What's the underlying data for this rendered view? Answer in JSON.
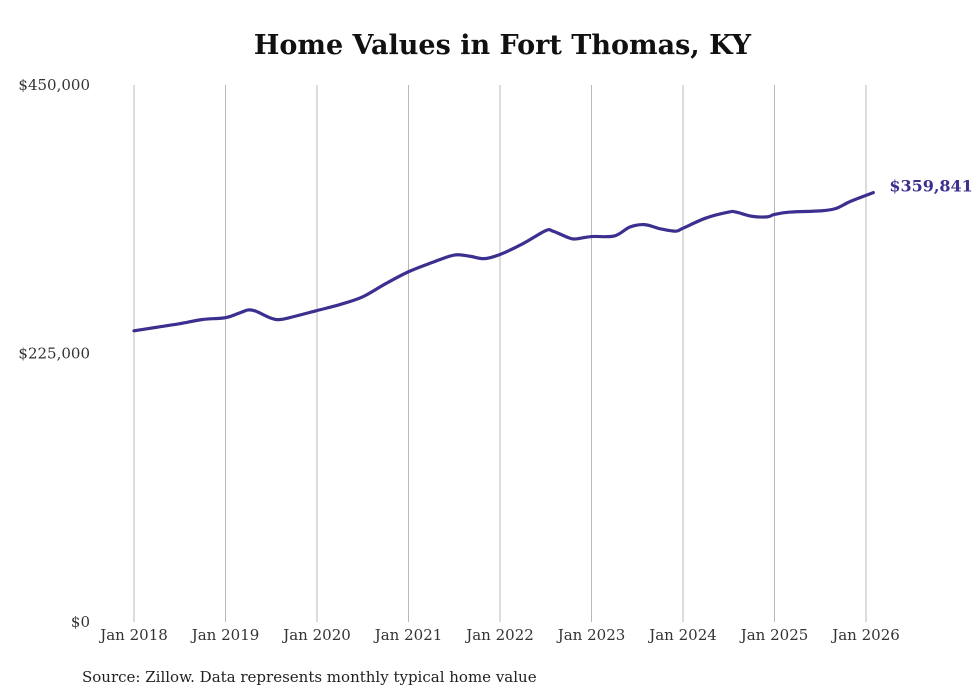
{
  "chart_data": {
    "type": "line",
    "title": "Home Values in Fort Thomas, KY",
    "xlabel": "",
    "ylabel": "",
    "ylim": [
      0,
      450000
    ],
    "xlim": [
      2018.0,
      2026.0
    ],
    "y_ticks": [
      {
        "value": 0,
        "label": "$0"
      },
      {
        "value": 225000,
        "label": "$225,000"
      },
      {
        "value": 450000,
        "label": "$450,000"
      }
    ],
    "x_ticks": [
      {
        "value": 2018,
        "label": "Jan 2018"
      },
      {
        "value": 2019,
        "label": "Jan 2019"
      },
      {
        "value": 2020,
        "label": "Jan 2020"
      },
      {
        "value": 2021,
        "label": "Jan 2021"
      },
      {
        "value": 2022,
        "label": "Jan 2022"
      },
      {
        "value": 2023,
        "label": "Jan 2023"
      },
      {
        "value": 2024,
        "label": "Jan 2024"
      },
      {
        "value": 2025,
        "label": "Jan 2025"
      },
      {
        "value": 2026,
        "label": "Jan 2026"
      }
    ],
    "grid": "vertical",
    "series": [
      {
        "name": "Typical home value",
        "color": "#3b2f8f",
        "x": [
          2018.0,
          2018.25,
          2018.5,
          2018.75,
          2019.0,
          2019.17,
          2019.25,
          2019.33,
          2019.5,
          2019.6,
          2019.75,
          2020.0,
          2020.25,
          2020.5,
          2020.75,
          2021.0,
          2021.25,
          2021.5,
          2021.67,
          2021.83,
          2022.0,
          2022.25,
          2022.5,
          2022.58,
          2022.75,
          2022.83,
          2023.0,
          2023.25,
          2023.42,
          2023.58,
          2023.75,
          2023.92,
          2024.0,
          2024.25,
          2024.5,
          2024.58,
          2024.75,
          2024.92,
          2025.0,
          2025.17,
          2025.5,
          2025.67,
          2025.83,
          2026.08
        ],
        "values": [
          244000,
          247000,
          250000,
          253500,
          255000,
          259500,
          261500,
          260500,
          254500,
          253500,
          256000,
          261000,
          266000,
          272500,
          283500,
          293500,
          301000,
          307500,
          306500,
          304500,
          308000,
          317000,
          328000,
          327500,
          322000,
          321000,
          323000,
          323500,
          331000,
          333000,
          329500,
          327500,
          330000,
          338500,
          343500,
          343500,
          340000,
          339500,
          341500,
          343500,
          344500,
          346500,
          352500,
          359841
        ]
      }
    ],
    "annotations": [
      {
        "text": "$359,841",
        "color": "#3b2f8f"
      }
    ]
  },
  "source": "Source: Zillow. Data represents monthly typical home value"
}
